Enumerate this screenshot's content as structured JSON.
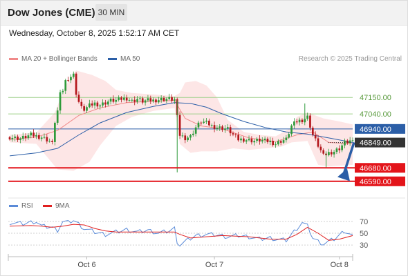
{
  "header": {
    "title": "Dow Jones (CME)",
    "timeframe": "30 MIN"
  },
  "datetime": "Wednesday, October 8, 2025 1:52:17 AM CET",
  "credit": "Research © 2025 Trading Central",
  "legend": {
    "ma20": {
      "label": "MA 20 + Bollinger Bands",
      "color": "#f08a8a"
    },
    "ma50": {
      "label": "MA 50",
      "color": "#2b5ea7"
    },
    "rsi": {
      "label": "RSI",
      "color": "#5b8bd8"
    },
    "rsi9": {
      "label": "9MA",
      "color": "#e02020"
    }
  },
  "chart_data": [
    {
      "type": "candlestick",
      "ylim": [
        46520,
        47340
      ],
      "x_tick_labels": [
        "Oct 6",
        "Oct 7",
        "Oct 8"
      ],
      "x_tick_index": [
        29,
        77,
        124
      ],
      "n_bars": 130,
      "levels": [
        {
          "label": "47150.00",
          "value": 47150,
          "kind": "resistance"
        },
        {
          "label": "47040.00",
          "value": 47040,
          "kind": "resistance"
        },
        {
          "label": "46940.00",
          "value": 46940,
          "kind": "pivot"
        },
        {
          "label": "46849.00",
          "value": 46849,
          "kind": "last"
        },
        {
          "label": "46680.00",
          "value": 46680,
          "kind": "support"
        },
        {
          "label": "46590.00",
          "value": 46590,
          "kind": "support"
        }
      ],
      "forecast_arrow": {
        "from": 46850,
        "to": 46610
      },
      "close_path": [
        [
          0,
          46885
        ],
        [
          4,
          46875
        ],
        [
          8,
          46900
        ],
        [
          12,
          46885
        ],
        [
          15,
          46860
        ],
        [
          16,
          46840
        ],
        [
          17,
          46990
        ],
        [
          18,
          47060
        ],
        [
          19,
          47170
        ],
        [
          20,
          47200
        ],
        [
          21,
          47260
        ],
        [
          22,
          47280
        ],
        [
          24,
          47300
        ],
        [
          25,
          47180
        ],
        [
          26,
          47120
        ],
        [
          27,
          47080
        ],
        [
          28,
          47070
        ],
        [
          30,
          47095
        ],
        [
          32,
          47110
        ],
        [
          34,
          47100
        ],
        [
          36,
          47115
        ],
        [
          38,
          47130
        ],
        [
          40,
          47130
        ],
        [
          42,
          47140
        ],
        [
          44,
          47145
        ],
        [
          46,
          47125
        ],
        [
          48,
          47140
        ],
        [
          50,
          47125
        ],
        [
          52,
          47130
        ],
        [
          54,
          47130
        ],
        [
          56,
          47135
        ],
        [
          58,
          47140
        ],
        [
          60,
          47140
        ],
        [
          62,
          47135
        ],
        [
          64,
          46900
        ],
        [
          65,
          46890
        ],
        [
          66,
          46880
        ],
        [
          68,
          46890
        ],
        [
          70,
          46950
        ],
        [
          72,
          46990
        ],
        [
          74,
          46980
        ],
        [
          76,
          46960
        ],
        [
          78,
          46950
        ],
        [
          80,
          46945
        ],
        [
          82,
          46940
        ],
        [
          84,
          46900
        ],
        [
          86,
          46870
        ],
        [
          88,
          46870
        ],
        [
          90,
          46865
        ],
        [
          92,
          46860
        ],
        [
          94,
          46865
        ],
        [
          96,
          46860
        ],
        [
          98,
          46855
        ],
        [
          100,
          46840
        ],
        [
          102,
          46860
        ],
        [
          104,
          46870
        ],
        [
          106,
          46960
        ],
        [
          108,
          46990
        ],
        [
          110,
          47000
        ],
        [
          112,
          47020
        ],
        [
          114,
          46900
        ],
        [
          116,
          46830
        ],
        [
          118,
          46760
        ],
        [
          120,
          46780
        ],
        [
          122,
          46790
        ],
        [
          124,
          46810
        ],
        [
          126,
          46850
        ],
        [
          128,
          46860
        ],
        [
          129,
          46849
        ]
      ],
      "wicks": [
        [
          63,
          47130,
          46650
        ],
        [
          111,
          46980,
          47110
        ],
        [
          119,
          46680,
          46790
        ]
      ],
      "ma20_path": [
        [
          0,
          46870
        ],
        [
          10,
          46885
        ],
        [
          18,
          46930
        ],
        [
          26,
          47030
        ],
        [
          34,
          47080
        ],
        [
          44,
          47115
        ],
        [
          54,
          47125
        ],
        [
          62,
          47130
        ],
        [
          66,
          47010
        ],
        [
          72,
          46960
        ],
        [
          80,
          46940
        ],
        [
          90,
          46880
        ],
        [
          100,
          46855
        ],
        [
          108,
          46900
        ],
        [
          114,
          46920
        ],
        [
          120,
          46850
        ],
        [
          129,
          46840
        ]
      ],
      "bb_upper_path": [
        [
          0,
          46900
        ],
        [
          10,
          46915
        ],
        [
          17,
          47050
        ],
        [
          21,
          47230
        ],
        [
          25,
          47330
        ],
        [
          31,
          47300
        ],
        [
          36,
          47260
        ],
        [
          40,
          47200
        ],
        [
          46,
          47180
        ],
        [
          54,
          47170
        ],
        [
          62,
          47160
        ],
        [
          64,
          47180
        ],
        [
          66,
          47250
        ],
        [
          70,
          47260
        ],
        [
          74,
          47230
        ],
        [
          78,
          47150
        ],
        [
          82,
          47000
        ],
        [
          88,
          46920
        ],
        [
          94,
          46900
        ],
        [
          100,
          46890
        ],
        [
          106,
          46950
        ],
        [
          108,
          47020
        ],
        [
          112,
          47050
        ],
        [
          118,
          47010
        ],
        [
          124,
          46990
        ],
        [
          129,
          46970
        ]
      ],
      "bb_lower_path": [
        [
          0,
          46850
        ],
        [
          10,
          46840
        ],
        [
          18,
          46670
        ],
        [
          24,
          46660
        ],
        [
          30,
          46720
        ],
        [
          34,
          46830
        ],
        [
          40,
          46960
        ],
        [
          46,
          47020
        ],
        [
          54,
          47060
        ],
        [
          62,
          47080
        ],
        [
          64,
          46840
        ],
        [
          68,
          46780
        ],
        [
          72,
          46790
        ],
        [
          78,
          46790
        ],
        [
          84,
          46810
        ],
        [
          90,
          46800
        ],
        [
          96,
          46810
        ],
        [
          102,
          46820
        ],
        [
          106,
          46850
        ],
        [
          112,
          46860
        ],
        [
          116,
          46700
        ],
        [
          120,
          46690
        ],
        [
          129,
          46700
        ]
      ],
      "ma50_path": [
        [
          0,
          46760
        ],
        [
          10,
          46780
        ],
        [
          18,
          46810
        ],
        [
          26,
          46900
        ],
        [
          34,
          46980
        ],
        [
          44,
          47050
        ],
        [
          54,
          47090
        ],
        [
          62,
          47115
        ],
        [
          68,
          47110
        ],
        [
          74,
          47085
        ],
        [
          80,
          47040
        ],
        [
          88,
          46990
        ],
        [
          96,
          46950
        ],
        [
          104,
          46920
        ],
        [
          112,
          46905
        ],
        [
          120,
          46880
        ],
        [
          129,
          46850
        ]
      ]
    },
    {
      "type": "line",
      "ylim": [
        15,
        85
      ],
      "y_tick_labels": [
        "70",
        "50",
        "30"
      ],
      "y_ticks": [
        70,
        50,
        30
      ],
      "series": [
        {
          "name": "RSI",
          "values": [
            [
              0,
              68
            ],
            [
              5,
              66
            ],
            [
              10,
              70
            ],
            [
              12,
              62
            ],
            [
              16,
              60
            ],
            [
              18,
              55
            ],
            [
              20,
              70
            ],
            [
              22,
              68
            ],
            [
              24,
              72
            ],
            [
              28,
              58
            ],
            [
              32,
              52
            ],
            [
              36,
              48
            ],
            [
              40,
              52
            ],
            [
              44,
              56
            ],
            [
              48,
              52
            ],
            [
              52,
              55
            ],
            [
              56,
              50
            ],
            [
              60,
              54
            ],
            [
              62,
              58
            ],
            [
              63,
              36
            ],
            [
              64,
              30
            ],
            [
              66,
              36
            ],
            [
              70,
              46
            ],
            [
              74,
              48
            ],
            [
              78,
              47
            ],
            [
              82,
              44
            ],
            [
              86,
              46
            ],
            [
              90,
              44
            ],
            [
              94,
              40
            ],
            [
              98,
              42
            ],
            [
              100,
              40
            ],
            [
              104,
              38
            ],
            [
              108,
              58
            ],
            [
              110,
              68
            ],
            [
              112,
              62
            ],
            [
              114,
              42
            ],
            [
              116,
              36
            ],
            [
              118,
              32
            ],
            [
              122,
              40
            ],
            [
              126,
              54
            ],
            [
              129,
              46
            ]
          ]
        },
        {
          "name": "9MA",
          "values": [
            [
              0,
              62
            ],
            [
              8,
              63
            ],
            [
              12,
              62
            ],
            [
              16,
              60
            ],
            [
              20,
              62
            ],
            [
              24,
              65
            ],
            [
              28,
              64
            ],
            [
              32,
              58
            ],
            [
              36,
              54
            ],
            [
              40,
              52
            ],
            [
              48,
              52
            ],
            [
              56,
              52
            ],
            [
              62,
              52
            ],
            [
              64,
              48
            ],
            [
              68,
              42
            ],
            [
              74,
              44
            ],
            [
              80,
              46
            ],
            [
              90,
              44
            ],
            [
              98,
              40
            ],
            [
              104,
              40
            ],
            [
              108,
              48
            ],
            [
              112,
              60
            ],
            [
              116,
              50
            ],
            [
              120,
              38
            ],
            [
              124,
              40
            ],
            [
              129,
              46
            ]
          ]
        }
      ]
    }
  ]
}
